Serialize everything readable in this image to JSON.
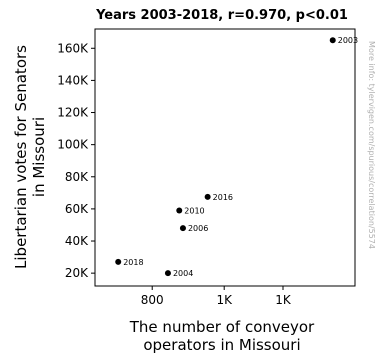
{
  "chart_data": {
    "type": "scatter",
    "title": "Years 2003-2018, r=0.970, p<0.01",
    "xlabel": "The number of conveyor operators in Missouri",
    "ylabel": "Libertarian votes for Senators in Missouri",
    "watermark": "More info: tylervigen.com/spurious/correlation/5574",
    "x_ticks": [
      "800",
      "1K",
      "1K"
    ],
    "y_ticks": [
      "20K",
      "40K",
      "60K",
      "80K",
      "100K",
      "120K",
      "140K",
      "160K"
    ],
    "ylim": [
      12000,
      172000
    ],
    "grid": false,
    "point_color": "#000000",
    "points": [
      {
        "label": "2003",
        "x": 1400,
        "y": 165000
      },
      {
        "label": "2004",
        "x": 840,
        "y": 20000
      },
      {
        "label": "2006",
        "x": 880,
        "y": 48000
      },
      {
        "label": "2010",
        "x": 870,
        "y": 59000
      },
      {
        "label": "2016",
        "x": 950,
        "y": 67500
      },
      {
        "label": "2018",
        "x": 720,
        "y": 27000
      }
    ]
  }
}
